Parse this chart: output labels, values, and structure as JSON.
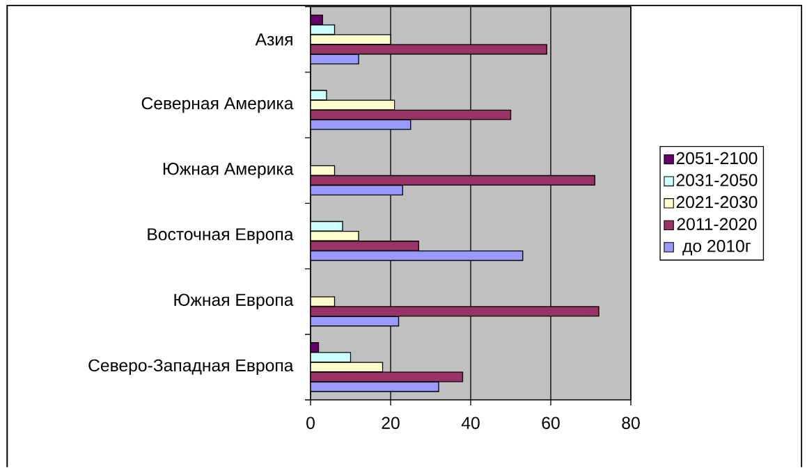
{
  "chart_data": {
    "type": "bar",
    "orientation": "horizontal",
    "categories": [
      "Азия",
      "Северная Америка",
      "Южная Америка",
      "Восточная Европа",
      "Южная Европа",
      "Северо-Западная Европа"
    ],
    "series": [
      {
        "name": "до 2010г",
        "color": "#9999ff",
        "values": [
          12,
          25,
          23,
          53,
          22,
          32
        ]
      },
      {
        "name": "2011-2020",
        "color": "#993366",
        "values": [
          59,
          50,
          71,
          27,
          72,
          38
        ]
      },
      {
        "name": "2021-2030",
        "color": "#ffffcc",
        "values": [
          20,
          21,
          6,
          12,
          6,
          18
        ]
      },
      {
        "name": "2031-2050",
        "color": "#ccffff",
        "values": [
          6,
          4,
          null,
          8,
          null,
          10
        ]
      },
      {
        "name": "2051-2100",
        "color": "#660066",
        "values": [
          3,
          null,
          null,
          null,
          null,
          2
        ]
      }
    ],
    "xlim": [
      0,
      80
    ],
    "xticks": [
      0,
      20,
      40,
      60,
      80
    ],
    "grid": "x",
    "legend": "right"
  }
}
